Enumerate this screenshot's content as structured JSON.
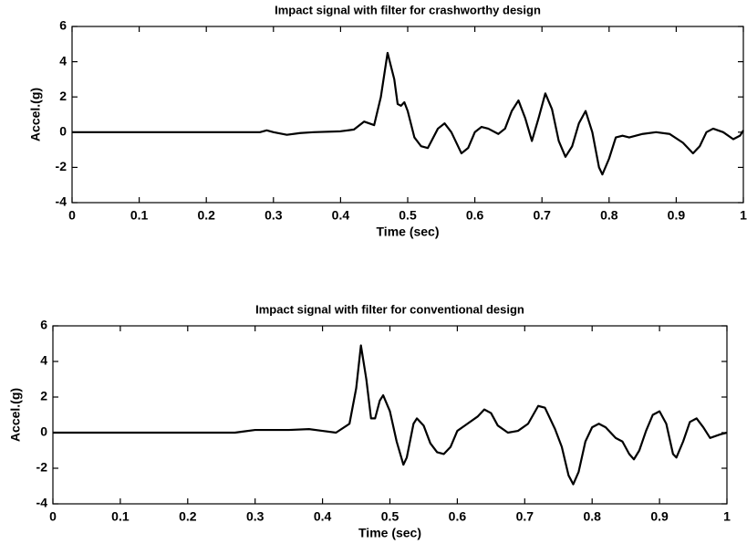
{
  "chart_data": [
    {
      "type": "line",
      "title": "Impact signal with filter for crashworthy design",
      "xlabel": "Time (sec)",
      "ylabel": "Accel.(g)",
      "color": "#000000",
      "x": [
        0,
        0.1,
        0.2,
        0.28,
        0.29,
        0.3,
        0.32,
        0.34,
        0.36,
        0.4,
        0.42,
        0.435,
        0.45,
        0.46,
        0.47,
        0.48,
        0.485,
        0.49,
        0.495,
        0.5,
        0.51,
        0.52,
        0.53,
        0.545,
        0.555,
        0.565,
        0.58,
        0.59,
        0.6,
        0.61,
        0.62,
        0.635,
        0.645,
        0.655,
        0.665,
        0.675,
        0.685,
        0.695,
        0.705,
        0.715,
        0.725,
        0.735,
        0.745,
        0.755,
        0.765,
        0.775,
        0.785,
        0.79,
        0.8,
        0.81,
        0.82,
        0.83,
        0.85,
        0.87,
        0.89,
        0.91,
        0.925,
        0.935,
        0.945,
        0.955,
        0.97,
        0.985,
        0.995,
        1
      ],
      "values": [
        0,
        0,
        0,
        0,
        0.1,
        0,
        -0.15,
        -0.05,
        0,
        0.05,
        0.15,
        0.6,
        0.4,
        2.0,
        4.5,
        3.0,
        1.6,
        1.5,
        1.7,
        1.2,
        -0.3,
        -0.8,
        -0.9,
        0.2,
        0.5,
        0,
        -1.2,
        -0.9,
        0,
        0.3,
        0.2,
        -0.1,
        0.2,
        1.2,
        1.8,
        0.8,
        -0.5,
        0.8,
        2.2,
        1.3,
        -0.5,
        -1.4,
        -0.8,
        0.5,
        1.2,
        0,
        -2.0,
        -2.4,
        -1.5,
        -0.3,
        -0.2,
        -0.3,
        -0.1,
        0,
        -0.1,
        -0.6,
        -1.2,
        -0.8,
        0,
        0.2,
        0,
        -0.4,
        -0.2,
        0.1
      ],
      "xlim": [
        0,
        1
      ],
      "ylim": [
        -4,
        6
      ],
      "xticks": [
        0,
        0.1,
        0.2,
        0.3,
        0.4,
        0.5,
        0.6,
        0.7,
        0.8,
        0.9,
        1
      ],
      "yticks": [
        -4,
        -2,
        0,
        2,
        4,
        6
      ]
    },
    {
      "type": "line",
      "title": "Impact signal with filter for conventional design",
      "xlabel": "Time (sec)",
      "ylabel": "Accel.(g)",
      "color": "#000000",
      "x": [
        0,
        0.1,
        0.2,
        0.27,
        0.28,
        0.3,
        0.35,
        0.38,
        0.4,
        0.42,
        0.44,
        0.45,
        0.457,
        0.465,
        0.472,
        0.478,
        0.485,
        0.49,
        0.5,
        0.51,
        0.52,
        0.525,
        0.535,
        0.54,
        0.55,
        0.56,
        0.57,
        0.58,
        0.59,
        0.6,
        0.615,
        0.63,
        0.64,
        0.65,
        0.66,
        0.675,
        0.69,
        0.705,
        0.72,
        0.73,
        0.745,
        0.755,
        0.765,
        0.772,
        0.78,
        0.79,
        0.8,
        0.81,
        0.82,
        0.835,
        0.845,
        0.855,
        0.862,
        0.87,
        0.88,
        0.89,
        0.9,
        0.91,
        0.92,
        0.925,
        0.935,
        0.945,
        0.955,
        0.965,
        0.975,
        0.99,
        1
      ],
      "values": [
        0,
        0,
        0,
        0,
        0.05,
        0.15,
        0.15,
        0.2,
        0.1,
        0,
        0.5,
        2.5,
        4.9,
        3.0,
        0.8,
        0.8,
        1.8,
        2.1,
        1.2,
        -0.5,
        -1.8,
        -1.4,
        0.5,
        0.8,
        0.4,
        -0.6,
        -1.1,
        -1.2,
        -0.8,
        0.1,
        0.5,
        0.9,
        1.3,
        1.1,
        0.4,
        0,
        0.1,
        0.5,
        1.5,
        1.4,
        0.2,
        -0.8,
        -2.4,
        -2.9,
        -2.2,
        -0.5,
        0.3,
        0.5,
        0.3,
        -0.3,
        -0.5,
        -1.2,
        -1.5,
        -1.0,
        0.1,
        1.0,
        1.2,
        0.5,
        -1.2,
        -1.4,
        -0.5,
        0.6,
        0.8,
        0.3,
        -0.3,
        -0.1,
        0
      ],
      "xlim": [
        0,
        1
      ],
      "ylim": [
        -4,
        6
      ],
      "xticks": [
        0,
        0.1,
        0.2,
        0.3,
        0.4,
        0.5,
        0.6,
        0.7,
        0.8,
        0.9,
        1
      ],
      "yticks": [
        -4,
        -2,
        0,
        2,
        4,
        6
      ]
    }
  ]
}
